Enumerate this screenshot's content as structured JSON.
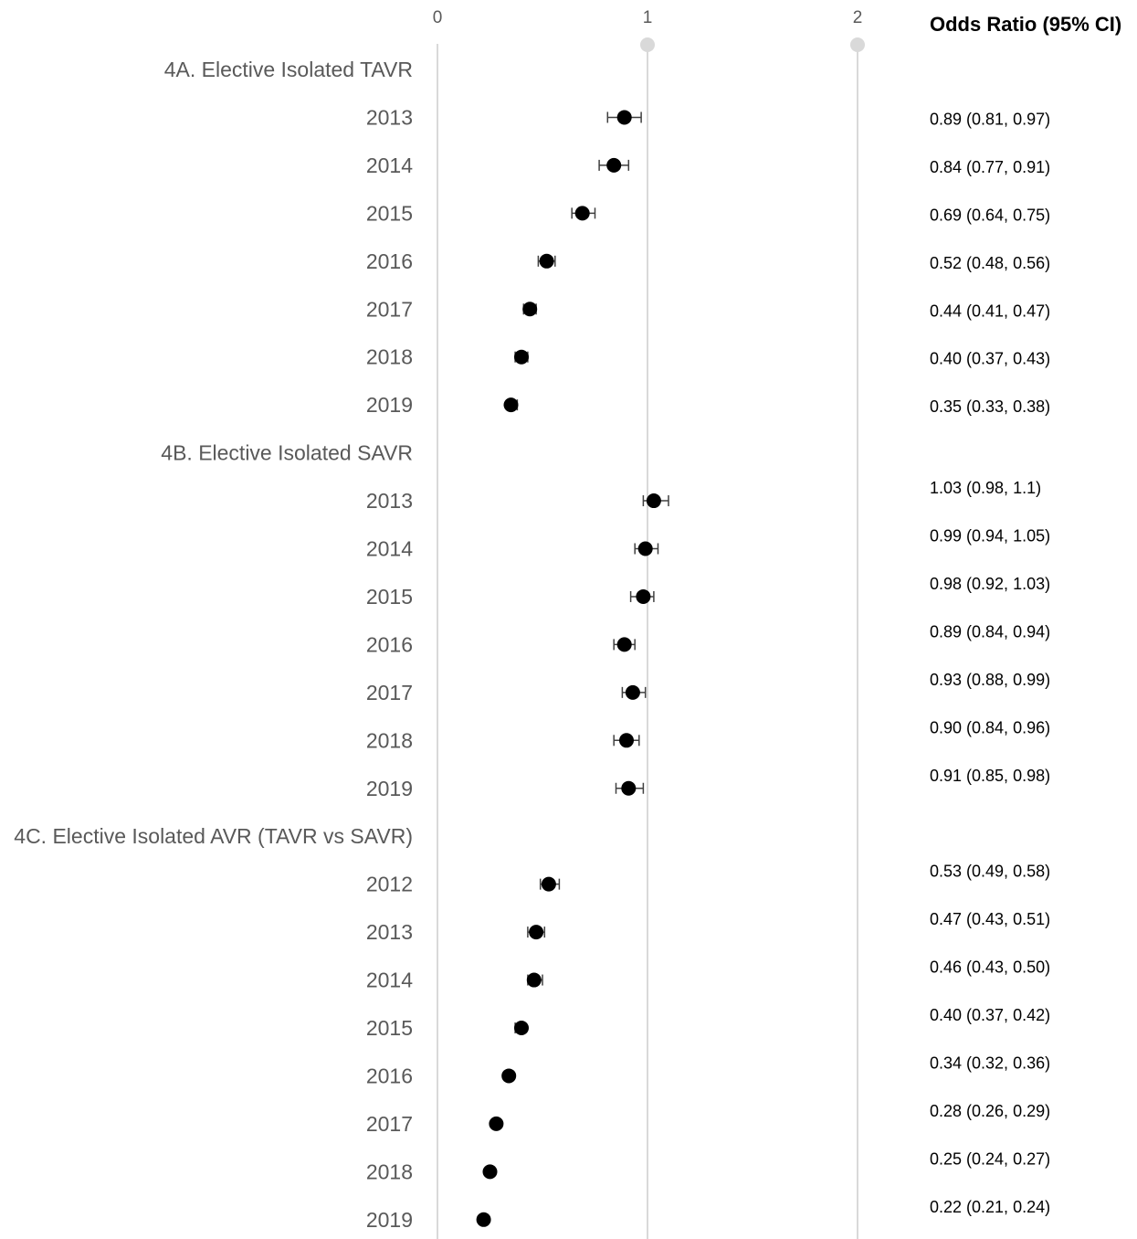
{
  "chart_data": {
    "type": "scatter",
    "subtype": "forest-plot",
    "xlim": [
      0,
      2
    ],
    "x_ticks": [
      "0",
      "1",
      "2"
    ],
    "grid": "vertical",
    "or_column_header": "Odds Ratio (95% CI)",
    "colors": {
      "marker": "#000000",
      "grid": "#d9d9d9",
      "label": "#595959",
      "error_bar": "#404040"
    },
    "rows": [
      {
        "label": "4A. Elective Isolated TAVR",
        "header": true
      },
      {
        "label": "2013",
        "or": 0.89,
        "lo": 0.81,
        "hi": 0.97,
        "text": "0.89 (0.81, 0.97)"
      },
      {
        "label": "2014",
        "or": 0.84,
        "lo": 0.77,
        "hi": 0.91,
        "text": "0.84 (0.77, 0.91)"
      },
      {
        "label": "2015",
        "or": 0.69,
        "lo": 0.64,
        "hi": 0.75,
        "text": "0.69 (0.64, 0.75)"
      },
      {
        "label": "2016",
        "or": 0.52,
        "lo": 0.48,
        "hi": 0.56,
        "text": "0.52 (0.48, 0.56)"
      },
      {
        "label": "2017",
        "or": 0.44,
        "lo": 0.41,
        "hi": 0.47,
        "text": "0.44 (0.41, 0.47)"
      },
      {
        "label": "2018",
        "or": 0.4,
        "lo": 0.37,
        "hi": 0.43,
        "text": "0.40 (0.37, 0.43)"
      },
      {
        "label": "2019",
        "or": 0.35,
        "lo": 0.33,
        "hi": 0.38,
        "text": "0.35 (0.33, 0.38)"
      },
      {
        "label": "4B. Elective Isolated SAVR",
        "header": true
      },
      {
        "label": "2013",
        "or": 1.03,
        "lo": 0.98,
        "hi": 1.1,
        "text": "1.03 (0.98, 1.1)"
      },
      {
        "label": "2014",
        "or": 0.99,
        "lo": 0.94,
        "hi": 1.05,
        "text": "0.99 (0.94, 1.05)"
      },
      {
        "label": "2015",
        "or": 0.98,
        "lo": 0.92,
        "hi": 1.03,
        "text": "0.98 (0.92, 1.03)"
      },
      {
        "label": "2016",
        "or": 0.89,
        "lo": 0.84,
        "hi": 0.94,
        "text": "0.89 (0.84, 0.94)"
      },
      {
        "label": "2017",
        "or": 0.93,
        "lo": 0.88,
        "hi": 0.99,
        "text": "0.93 (0.88, 0.99)"
      },
      {
        "label": "2018",
        "or": 0.9,
        "lo": 0.84,
        "hi": 0.96,
        "text": "0.90 (0.84, 0.96)"
      },
      {
        "label": "2019",
        "or": 0.91,
        "lo": 0.85,
        "hi": 0.98,
        "text": "0.91 (0.85, 0.98)"
      },
      {
        "label": "4C. Elective Isolated AVR (TAVR vs SAVR)",
        "header": true
      },
      {
        "label": "2012",
        "or": 0.53,
        "lo": 0.49,
        "hi": 0.58,
        "text": "0.53 (0.49, 0.58)"
      },
      {
        "label": "2013",
        "or": 0.47,
        "lo": 0.43,
        "hi": 0.51,
        "text": "0.47 (0.43, 0.51)"
      },
      {
        "label": "2014",
        "or": 0.46,
        "lo": 0.43,
        "hi": 0.5,
        "text": "0.46 (0.43, 0.50)"
      },
      {
        "label": "2015",
        "or": 0.4,
        "lo": 0.37,
        "hi": 0.42,
        "text": "0.40 (0.37, 0.42)"
      },
      {
        "label": "2016",
        "or": 0.34,
        "lo": 0.32,
        "hi": 0.36,
        "text": "0.34 (0.32, 0.36)"
      },
      {
        "label": "2017",
        "or": 0.28,
        "lo": 0.26,
        "hi": 0.29,
        "text": "0.28 (0.26, 0.29)"
      },
      {
        "label": "2018",
        "or": 0.25,
        "lo": 0.24,
        "hi": 0.27,
        "text": "0.25 (0.24, 0.27)"
      },
      {
        "label": "2019",
        "or": 0.22,
        "lo": 0.21,
        "hi": 0.24,
        "text": "0.22 (0.21, 0.24)"
      }
    ]
  }
}
